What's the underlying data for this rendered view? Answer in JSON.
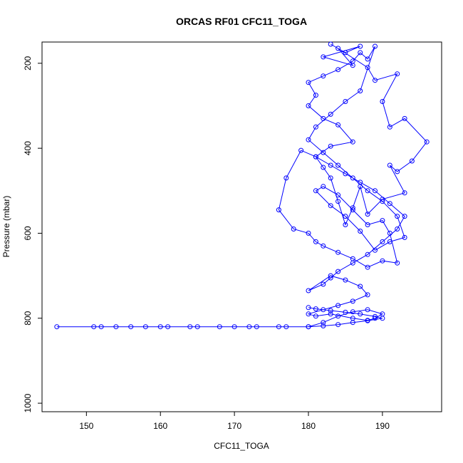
{
  "chart_data": {
    "type": "line",
    "title": "ORCAS RF01 CFC11_TOGA",
    "xlabel": "CFC11_TOGA",
    "ylabel": "Pressure (mbar)",
    "xlim": [
      144,
      198
    ],
    "ylim": [
      1020,
      150
    ],
    "y_reversed": true,
    "x_ticks": [
      150,
      160,
      170,
      180,
      190
    ],
    "y_ticks": [
      200,
      400,
      600,
      800,
      1000
    ],
    "grid": false,
    "legend": "none",
    "marker": "open-circle",
    "series_color": "#0000ff",
    "series": [
      {
        "x": [
          183,
          185,
          187,
          182,
          186,
          184,
          188,
          189,
          192,
          190,
          191,
          193,
          196,
          194,
          192,
          191,
          193,
          190,
          188,
          187,
          186,
          185,
          184,
          183,
          182,
          181,
          183,
          186,
          184,
          182,
          180,
          181,
          180,
          182,
          184,
          186,
          187,
          188,
          189,
          187,
          185,
          183,
          181,
          180,
          182,
          184,
          186,
          188,
          190,
          192,
          193,
          191,
          189,
          187,
          185,
          183,
          181,
          182,
          184,
          186,
          188,
          190,
          191,
          192,
          190,
          188,
          186,
          184,
          182,
          181,
          180,
          178,
          176,
          177,
          179,
          181,
          183,
          185,
          187,
          189,
          191,
          193,
          192,
          190,
          188,
          186,
          184,
          183,
          182,
          180,
          183,
          185,
          187,
          188,
          186,
          184,
          182,
          180,
          181,
          183,
          186,
          188,
          189,
          190,
          188,
          186,
          184,
          182,
          180,
          176,
          172,
          168,
          164,
          160,
          156,
          152,
          146,
          151,
          154,
          158,
          161,
          165,
          170,
          173,
          177,
          180,
          182,
          184,
          186,
          188,
          190,
          189,
          187,
          185,
          183,
          181,
          180
        ],
        "y": [
          155,
          175,
          160,
          185,
          205,
          165,
          210,
          240,
          225,
          290,
          350,
          330,
          385,
          430,
          455,
          440,
          505,
          520,
          555,
          490,
          540,
          580,
          525,
          470,
          445,
          420,
          395,
          385,
          345,
          330,
          300,
          275,
          245,
          230,
          215,
          195,
          175,
          190,
          160,
          265,
          290,
          320,
          350,
          380,
          410,
          440,
          470,
          500,
          525,
          560,
          610,
          620,
          640,
          595,
          560,
          535,
          500,
          490,
          510,
          545,
          580,
          570,
          600,
          670,
          665,
          680,
          660,
          645,
          630,
          620,
          600,
          590,
          545,
          470,
          405,
          420,
          440,
          460,
          480,
          500,
          530,
          560,
          590,
          620,
          650,
          670,
          690,
          705,
          720,
          735,
          700,
          710,
          725,
          745,
          760,
          770,
          780,
          790,
          795,
          790,
          800,
          805,
          800,
          790,
          780,
          785,
          795,
          810,
          820,
          820,
          820,
          820,
          820,
          820,
          820,
          820,
          820,
          820,
          820,
          820,
          820,
          820,
          820,
          820,
          820,
          820,
          818,
          815,
          810,
          806,
          800,
          796,
          790,
          786,
          782,
          778,
          775
        ]
      }
    ]
  }
}
